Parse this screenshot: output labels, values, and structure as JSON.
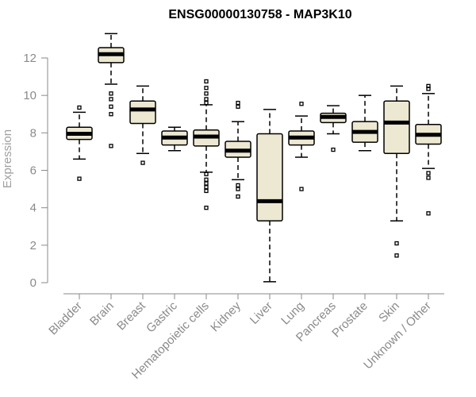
{
  "chart_data": {
    "type": "box",
    "title": "ENSG00000130758 - MAP3K10",
    "xlabel": "",
    "ylabel": "Expression",
    "ylim": [
      0,
      13.5
    ],
    "yticks": [
      0,
      2,
      4,
      6,
      8,
      10,
      12
    ],
    "colors": {
      "box_fill": "#ede8d2",
      "box_stroke": "#000000",
      "axis": "#8a8a8a",
      "label": "#8a8a8a"
    },
    "categories": [
      "Bladder",
      "Brain",
      "Breast",
      "Gastric",
      "Hematopoietic cells",
      "Kidney",
      "Liver",
      "Lung",
      "Pancreas",
      "Prostate",
      "Skin",
      "Unknown / Other"
    ],
    "boxes": [
      {
        "q1": 7.65,
        "median": 7.95,
        "q3": 8.3,
        "whisker_low": 6.6,
        "whisker_high": 9.1,
        "outliers": [
          9.35,
          5.55
        ]
      },
      {
        "q1": 11.75,
        "median": 12.2,
        "q3": 12.55,
        "whisker_low": 10.6,
        "whisker_high": 13.3,
        "outliers": [
          10.1,
          9.8,
          9.4,
          9.0,
          7.3
        ]
      },
      {
        "q1": 8.5,
        "median": 9.25,
        "q3": 9.7,
        "whisker_low": 6.9,
        "whisker_high": 10.5,
        "outliers": [
          6.4
        ]
      },
      {
        "q1": 7.35,
        "median": 7.75,
        "q3": 8.1,
        "whisker_low": 7.05,
        "whisker_high": 8.3,
        "outliers": []
      },
      {
        "q1": 7.3,
        "median": 7.8,
        "q3": 8.15,
        "whisker_low": 5.9,
        "whisker_high": 9.5,
        "outliers": [
          10.75,
          10.4,
          10.1,
          9.8,
          9.6,
          5.8,
          5.5,
          5.3,
          5.1,
          4.9,
          4.0
        ]
      },
      {
        "q1": 6.7,
        "median": 7.05,
        "q3": 7.55,
        "whisker_low": 5.5,
        "whisker_high": 8.6,
        "outliers": [
          9.6,
          9.4,
          5.2,
          5.0,
          4.6
        ]
      },
      {
        "q1": 3.3,
        "median": 4.35,
        "q3": 7.95,
        "whisker_low": 0.05,
        "whisker_high": 9.25,
        "outliers": []
      },
      {
        "q1": 7.35,
        "median": 7.75,
        "q3": 8.1,
        "whisker_low": 6.7,
        "whisker_high": 8.9,
        "outliers": [
          9.55,
          5.0
        ]
      },
      {
        "q1": 8.55,
        "median": 8.85,
        "q3": 9.05,
        "whisker_low": 7.95,
        "whisker_high": 9.45,
        "outliers": [
          7.1
        ]
      },
      {
        "q1": 7.5,
        "median": 8.05,
        "q3": 8.6,
        "whisker_low": 7.05,
        "whisker_high": 10.0,
        "outliers": []
      },
      {
        "q1": 6.9,
        "median": 8.55,
        "q3": 9.7,
        "whisker_low": 3.3,
        "whisker_high": 10.5,
        "outliers": [
          2.1,
          1.45
        ]
      },
      {
        "q1": 7.4,
        "median": 7.9,
        "q3": 8.45,
        "whisker_low": 6.1,
        "whisker_high": 10.1,
        "outliers": [
          10.5,
          10.35,
          5.85,
          5.6,
          3.7
        ]
      }
    ]
  }
}
